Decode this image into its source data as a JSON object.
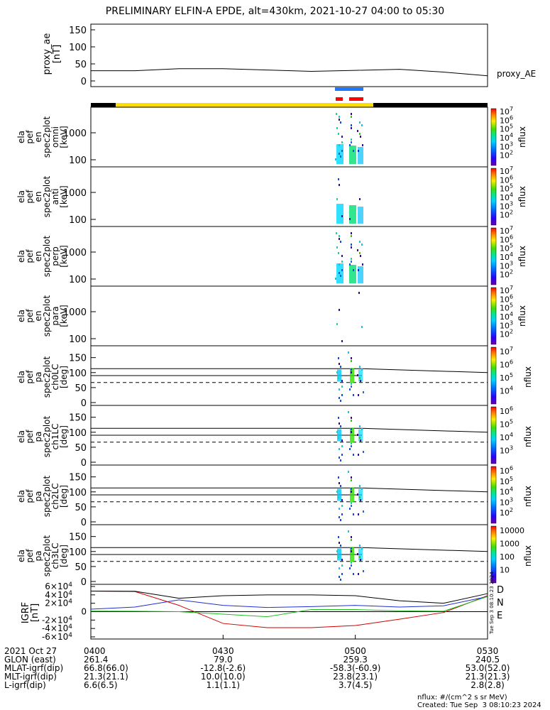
{
  "title": "PRELIMINARY ELFIN-A EPDE, alt=430km, 2021-10-27 04:00 to 05:30",
  "created": "Created: Tue Sep  3 08:10:23 2024",
  "units_note": "nflux: #/(cm^2 s sr MeV)",
  "side_stamp": "Tue Sep  3 08:10:23 2024",
  "proxy_panel": {
    "ylabel_lines": [
      "proxy_ae",
      "[nT]"
    ],
    "yticks": [
      "150",
      "100",
      "50",
      "0"
    ],
    "legend": "proxy_AE",
    "series_color": "#000000"
  },
  "bars": {
    "black": "#000000",
    "yellow": "#ffdd00",
    "blue": "#1e78ff",
    "red": "#ff0000"
  },
  "energy_panels": [
    {
      "label_lines": [
        "ela",
        "pef",
        "en",
        "spec2plot",
        "omni",
        "[keV]"
      ],
      "yticks": [
        "1000",
        "100"
      ],
      "cbar_ticks": [
        [
          "10",
          "7"
        ],
        [
          "10",
          "6"
        ],
        [
          "10",
          "5"
        ],
        [
          "10",
          "4"
        ],
        [
          "10",
          "3"
        ],
        [
          "10",
          "2"
        ]
      ]
    },
    {
      "label_lines": [
        "ela",
        "pef",
        "en",
        "spec2plot",
        "anti",
        "[keV]"
      ],
      "yticks": [
        "1000",
        "100"
      ],
      "cbar_ticks": [
        [
          "10",
          "7"
        ],
        [
          "10",
          "6"
        ],
        [
          "10",
          "5"
        ],
        [
          "10",
          "4"
        ],
        [
          "10",
          "3"
        ],
        [
          "10",
          "2"
        ]
      ]
    },
    {
      "label_lines": [
        "ela",
        "pef",
        "en",
        "spec2plot",
        "perp",
        "[keV]"
      ],
      "yticks": [
        "1000",
        "100"
      ],
      "cbar_ticks": [
        [
          "10",
          "7"
        ],
        [
          "10",
          "6"
        ],
        [
          "10",
          "5"
        ],
        [
          "10",
          "4"
        ],
        [
          "10",
          "3"
        ],
        [
          "10",
          "2"
        ]
      ]
    },
    {
      "label_lines": [
        "ela",
        "pef",
        "en",
        "spec2plot",
        "para",
        "[keV]"
      ],
      "yticks": [
        "1000",
        "100"
      ],
      "cbar_ticks": [
        [
          "10",
          "7"
        ],
        [
          "10",
          "6"
        ],
        [
          "10",
          "5"
        ],
        [
          "10",
          "4"
        ],
        [
          "10",
          "3"
        ],
        [
          "10",
          "2"
        ]
      ]
    }
  ],
  "pa_panels": [
    {
      "label_lines": [
        "ela",
        "pef",
        "pa",
        "spec2plot",
        "ch0LC",
        "[deg]"
      ],
      "yticks": [
        "150",
        "100",
        "50",
        "0"
      ],
      "cbar_ticks": [
        [
          "10",
          "7"
        ],
        [
          "10",
          "6"
        ],
        [
          "10",
          "5"
        ],
        [
          "10",
          "4"
        ]
      ]
    },
    {
      "label_lines": [
        "ela",
        "pef",
        "pa",
        "spec2plot",
        "ch1LC",
        "[deg]"
      ],
      "yticks": [
        "150",
        "100",
        "50",
        "0"
      ],
      "cbar_ticks": [
        [
          "10",
          "6"
        ],
        [
          "10",
          "5"
        ],
        [
          "10",
          "4"
        ],
        [
          "10",
          "3"
        ]
      ]
    },
    {
      "label_lines": [
        "ela",
        "pef",
        "pa",
        "spec2plot",
        "ch2LC",
        "[deg]"
      ],
      "yticks": [
        "150",
        "100",
        "50",
        "0"
      ],
      "cbar_ticks": [
        [
          "10",
          "6"
        ],
        [
          "10",
          "5"
        ],
        [
          "10",
          "4"
        ],
        [
          "10",
          "3"
        ],
        [
          "10",
          "2"
        ]
      ]
    },
    {
      "label_lines": [
        "ela",
        "pef",
        "pa",
        "spec2plot",
        "ch3LC",
        "[deg]"
      ],
      "yticks": [
        "150",
        "100",
        "50",
        "0"
      ],
      "cbar_ticks": [
        [
          "10000",
          ""
        ],
        [
          "1000",
          ""
        ],
        [
          "100",
          ""
        ],
        [
          "10",
          ""
        ]
      ]
    }
  ],
  "cbar_label": "nflux",
  "igrf_panel": {
    "ylabel_lines": [
      "IGRF",
      "[nT]"
    ],
    "yticks": [
      [
        "6",
        "4"
      ],
      [
        "4",
        "4"
      ],
      [
        "2",
        "4"
      ],
      [
        "0",
        ""
      ],
      [
        "-2",
        "4"
      ],
      [
        "-4",
        "4"
      ],
      [
        "-6",
        "4"
      ]
    ],
    "legend": [
      {
        "name": "D",
        "color": "#d00000"
      },
      {
        "name": "N",
        "color": "#1f2fd0"
      },
      {
        "name": "E",
        "color": "#20c020"
      }
    ]
  },
  "ephemeris": {
    "rows": [
      [
        "2021 Oct 27",
        "0400",
        "0430",
        "0500",
        "0530"
      ],
      [
        "GLON (east)",
        "261.4",
        "79.0",
        "259.3",
        "240.5"
      ],
      [
        "MLAT-igrf(dip)",
        "66.8(66.0)",
        "-12.8(-2.6)",
        "-58.3(-60.9)",
        "53.0(52.0)"
      ],
      [
        "MLT-igrf(dip)",
        "21.3(21.1)",
        "10.0(10.0)",
        "23.8(23.1)",
        "21.3(21.3)"
      ],
      [
        "L-igrf(dip)",
        "6.6(6.5)",
        "1.1(1.1)",
        "3.7(4.5)",
        "2.8(2.8)"
      ]
    ]
  },
  "chart_data": {
    "type": "line",
    "x_range": [
      "04:00",
      "05:30"
    ],
    "x_ticks": [
      "0400",
      "0430",
      "0500",
      "0530"
    ],
    "proxy_ae": {
      "ylim": [
        0,
        150
      ],
      "x_min": [
        0,
        10,
        20,
        30,
        40,
        50,
        60,
        70,
        80,
        90
      ],
      "values": [
        30,
        30,
        36,
        36,
        32,
        28,
        31,
        34,
        26,
        15
      ]
    },
    "pa_reference_lines_deg": {
      "solid": [
        113,
        90
      ],
      "dashed": 67
    },
    "igrf": {
      "ylim": [
        -60000,
        60000
      ],
      "series": [
        {
          "name": "D",
          "color": "#d00000",
          "x_min": [
            0,
            10,
            20,
            30,
            40,
            50,
            60,
            70,
            80,
            90
          ],
          "values": [
            49000,
            48000,
            15000,
            -28000,
            -38000,
            -38000,
            -33000,
            -18000,
            -2000,
            38000
          ]
        },
        {
          "name": "N",
          "color": "#1f2fd0",
          "x_min": [
            0,
            10,
            20,
            30,
            40,
            50,
            60,
            70,
            80,
            90
          ],
          "values": [
            6000,
            11000,
            28000,
            15000,
            10000,
            12000,
            15000,
            11000,
            14000,
            36000
          ]
        },
        {
          "name": "E",
          "color": "#20c020",
          "x_min": [
            0,
            10,
            20,
            30,
            40,
            50,
            60,
            70,
            80,
            90
          ],
          "values": [
            1500,
            1000,
            0,
            -6000,
            -12000,
            5000,
            5000,
            2000,
            1000,
            36000
          ]
        },
        {
          "name": "",
          "color": "#000000",
          "x_min": [
            0,
            10,
            20,
            30,
            40,
            50,
            60,
            70,
            80,
            90
          ],
          "values": [
            49000,
            48500,
            32000,
            38000,
            40000,
            40000,
            38000,
            26000,
            20000,
            43000
          ]
        }
      ]
    }
  }
}
